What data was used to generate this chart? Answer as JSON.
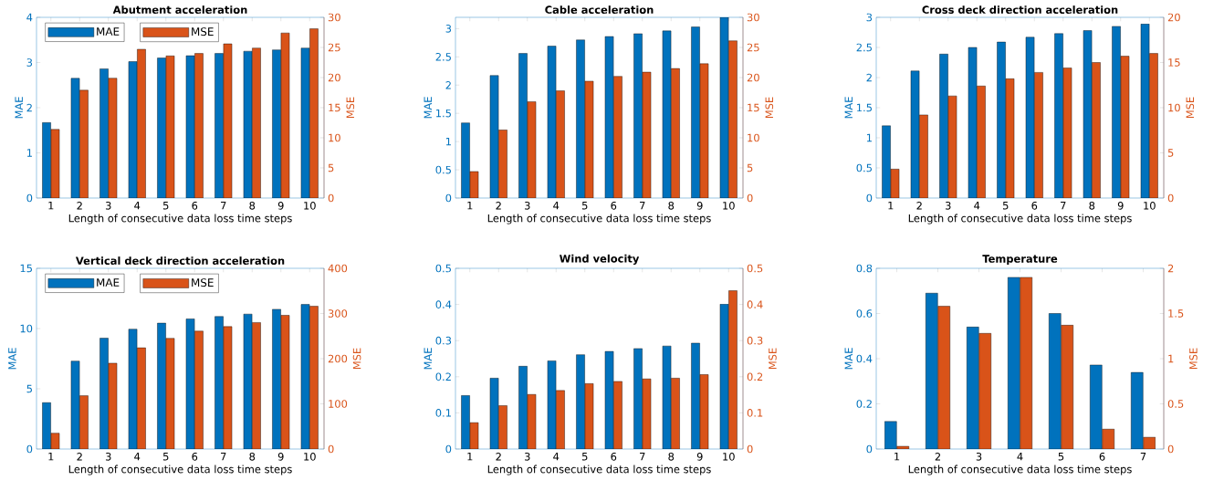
{
  "chart_data": [
    {
      "type": "bar",
      "title": "Abutment acceleration",
      "xlabel": "Length of consecutive data loss time steps",
      "ylabel": "MAE",
      "y2label": "MSE",
      "legend": "top left",
      "categories": [
        "1",
        "2",
        "3",
        "4",
        "5",
        "6",
        "7",
        "8",
        "9",
        "10"
      ],
      "series": [
        {
          "name": "MAE",
          "color": "#0072bd",
          "values": [
            1.67,
            2.65,
            2.86,
            3.02,
            3.1,
            3.15,
            3.2,
            3.25,
            3.28,
            3.32
          ]
        },
        {
          "name": "MSE",
          "color": "#d95319",
          "axis": "y2",
          "values": [
            11.4,
            17.9,
            19.9,
            24.7,
            23.6,
            24.0,
            25.6,
            24.9,
            27.4,
            28.1
          ]
        }
      ],
      "ylim": [
        0,
        4
      ],
      "yticks": [
        0,
        1,
        2,
        3,
        4
      ],
      "y2lim": [
        0,
        30
      ],
      "y2ticks": [
        0,
        5,
        10,
        15,
        20,
        25,
        30
      ]
    },
    {
      "type": "bar",
      "title": "Cable acceleration",
      "xlabel": "Length of consecutive data loss time steps",
      "ylabel": "MAE",
      "y2label": "MSE",
      "categories": [
        "1",
        "2",
        "3",
        "4",
        "5",
        "6",
        "7",
        "8",
        "9",
        "10"
      ],
      "series": [
        {
          "color": "#0072bd",
          "values": [
            1.33,
            2.17,
            2.56,
            2.69,
            2.8,
            2.86,
            2.91,
            2.96,
            3.03,
            3.2
          ]
        },
        {
          "color": "#d95319",
          "axis": "y2",
          "values": [
            4.4,
            11.3,
            16.0,
            17.8,
            19.4,
            20.2,
            20.9,
            21.5,
            22.3,
            26.1
          ]
        }
      ],
      "ylim": [
        0,
        3.2
      ],
      "yticks": [
        0,
        0.5,
        1,
        1.5,
        2,
        2.5,
        3
      ],
      "y2lim": [
        0,
        30
      ],
      "y2ticks": [
        0,
        5,
        10,
        15,
        20,
        25,
        30
      ]
    },
    {
      "type": "bar",
      "title": "Cross deck direction acceleration",
      "xlabel": "Length of consecutive data loss time steps",
      "ylabel": "MAE",
      "y2label": "MSE",
      "categories": [
        "1",
        "2",
        "3",
        "4",
        "5",
        "6",
        "7",
        "8",
        "9",
        "10"
      ],
      "series": [
        {
          "color": "#0072bd",
          "values": [
            1.2,
            2.11,
            2.39,
            2.5,
            2.59,
            2.67,
            2.73,
            2.78,
            2.85,
            2.89
          ]
        },
        {
          "color": "#d95319",
          "axis": "y2",
          "values": [
            3.2,
            9.2,
            11.3,
            12.4,
            13.2,
            13.9,
            14.4,
            15.0,
            15.7,
            16.0
          ]
        }
      ],
      "ylim": [
        0,
        3
      ],
      "yticks": [
        0,
        0.5,
        1,
        1.5,
        2,
        2.5,
        3
      ],
      "y2lim": [
        0,
        20
      ],
      "y2ticks": [
        0,
        5,
        10,
        15,
        20
      ]
    },
    {
      "type": "bar",
      "title": "Vertical deck direction acceleration",
      "xlabel": "Length of consecutive data loss time steps",
      "ylabel": "MAE",
      "y2label": "MSE",
      "legend": "top left",
      "categories": [
        "1",
        "2",
        "3",
        "4",
        "5",
        "6",
        "7",
        "8",
        "9",
        "10"
      ],
      "series": [
        {
          "name": "MAE",
          "color": "#0072bd",
          "values": [
            3.85,
            7.3,
            9.2,
            9.95,
            10.45,
            10.8,
            11.0,
            11.2,
            11.6,
            12.0
          ]
        },
        {
          "name": "MSE",
          "color": "#d95319",
          "axis": "y2",
          "values": [
            35,
            118,
            190,
            224,
            245,
            261,
            271,
            280,
            296,
            316
          ]
        }
      ],
      "ylim": [
        0,
        15
      ],
      "yticks": [
        0,
        5,
        10,
        15
      ],
      "y2lim": [
        0,
        400
      ],
      "y2ticks": [
        0,
        100,
        200,
        300,
        400
      ]
    },
    {
      "type": "bar",
      "title": "Wind velocity",
      "xlabel": "Length of consecutive data loss time steps",
      "ylabel": "MAE",
      "y2label": "MSE",
      "categories": [
        "1",
        "2",
        "3",
        "4",
        "5",
        "6",
        "7",
        "8",
        "9",
        "10"
      ],
      "series": [
        {
          "color": "#0072bd",
          "values": [
            0.148,
            0.196,
            0.229,
            0.244,
            0.261,
            0.27,
            0.278,
            0.285,
            0.293,
            0.401
          ]
        },
        {
          "color": "#d95319",
          "axis": "y2",
          "values": [
            0.073,
            0.12,
            0.151,
            0.162,
            0.181,
            0.187,
            0.194,
            0.196,
            0.206,
            0.438
          ]
        }
      ],
      "ylim": [
        0,
        0.5
      ],
      "yticks": [
        0,
        0.1,
        0.2,
        0.3,
        0.4,
        0.5
      ],
      "y2lim": [
        0,
        0.5
      ],
      "y2ticks": [
        0,
        0.1,
        0.2,
        0.3,
        0.4,
        0.5
      ]
    },
    {
      "type": "bar",
      "title": "Temperature",
      "xlabel": "Length of consecutive data loss time steps",
      "ylabel": "MAE",
      "y2label": "MSE",
      "categories": [
        "1",
        "2",
        "3",
        "4",
        "5",
        "6",
        "7"
      ],
      "series": [
        {
          "color": "#0072bd",
          "values": [
            0.122,
            0.69,
            0.54,
            0.76,
            0.6,
            0.372,
            0.339
          ]
        },
        {
          "color": "#d95319",
          "axis": "y2",
          "values": [
            0.03,
            1.58,
            1.28,
            1.9,
            1.37,
            0.22,
            0.13
          ]
        }
      ],
      "ylim": [
        0,
        0.8
      ],
      "yticks": [
        0,
        0.2,
        0.4,
        0.6,
        0.8
      ],
      "y2lim": [
        0,
        2
      ],
      "y2ticks": [
        0,
        0.5,
        1,
        1.5,
        2
      ]
    }
  ]
}
